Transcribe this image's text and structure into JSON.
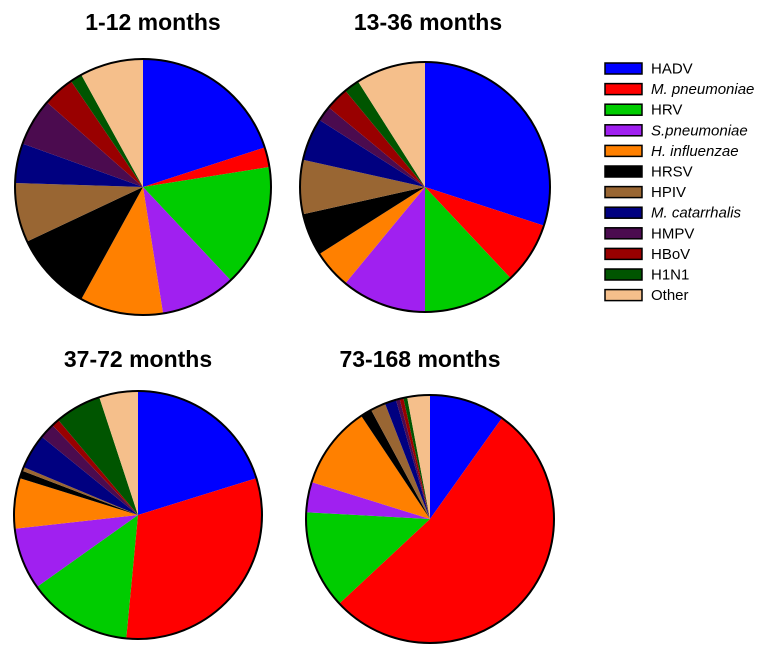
{
  "chart_data": [
    {
      "type": "pie",
      "title": "1-12 months",
      "categories": [
        "HADV",
        "M. pneumoniae",
        "HRV",
        "S.pneumoniae",
        "H. influenzae",
        "HRSV",
        "HPIV",
        "M. catarrhalis",
        "HMPV",
        "HBoV",
        "H1N1",
        "Other"
      ],
      "values": [
        20,
        2.5,
        15.5,
        9.5,
        10.5,
        10,
        7.5,
        5,
        6,
        4,
        1.5,
        8
      ]
    },
    {
      "type": "pie",
      "title": "13-36 months",
      "categories": [
        "HADV",
        "M. pneumoniae",
        "HRV",
        "S.pneumoniae",
        "H. influenzae",
        "HRSV",
        "HPIV",
        "M. catarrhalis",
        "HMPV",
        "HBoV",
        "H1N1",
        "Other"
      ],
      "values": [
        30,
        8,
        12,
        11,
        5,
        5.5,
        7,
        5.5,
        2,
        3,
        2,
        9
      ]
    },
    {
      "type": "pie",
      "title": "37-72 months",
      "categories": [
        "HADV",
        "M. pneumoniae",
        "HRV",
        "S.pneumoniae",
        "H. influenzae",
        "HRSV",
        "HPIV",
        "M. catarrhalis",
        "HMPV",
        "HBoV",
        "H1N1",
        "Other"
      ],
      "values": [
        20,
        31,
        13.5,
        8,
        6.5,
        1,
        0.5,
        4.5,
        2,
        1,
        6,
        5
      ]
    },
    {
      "type": "pie",
      "title": "73-168 months",
      "categories": [
        "HADV",
        "M. pneumoniae",
        "HRV",
        "S.pneumoniae",
        "H. influenzae",
        "HRSV",
        "HPIV",
        "M. catarrhalis",
        "HMPV",
        "HBoV",
        "H1N1",
        "Other"
      ],
      "values": [
        10,
        54,
        13,
        4,
        11,
        1.5,
        2,
        1.5,
        0.5,
        0.5,
        0.5,
        3
      ]
    }
  ],
  "legend": {
    "entries": [
      {
        "label": "HADV",
        "color": "#0000ff",
        "italic": false
      },
      {
        "label": "M. pneumoniae",
        "color": "#ff0000",
        "italic": true
      },
      {
        "label": "HRV",
        "color": "#00cc00",
        "italic": false
      },
      {
        "label": "S.pneumoniae",
        "color": "#a020f0",
        "italic": true
      },
      {
        "label": "H. influenzae",
        "color": "#ff8000",
        "italic": true
      },
      {
        "label": "HRSV",
        "color": "#000000",
        "italic": false
      },
      {
        "label": "HPIV",
        "color": "#996633",
        "italic": false
      },
      {
        "label": "M. catarrhalis",
        "color": "#000080",
        "italic": true
      },
      {
        "label": "HMPV",
        "color": "#4b0b4f",
        "italic": false
      },
      {
        "label": "HBoV",
        "color": "#990000",
        "italic": false
      },
      {
        "label": "H1N1",
        "color": "#005500",
        "italic": false
      },
      {
        "label": "Other",
        "color": "#f5bf8b",
        "italic": false
      }
    ]
  }
}
